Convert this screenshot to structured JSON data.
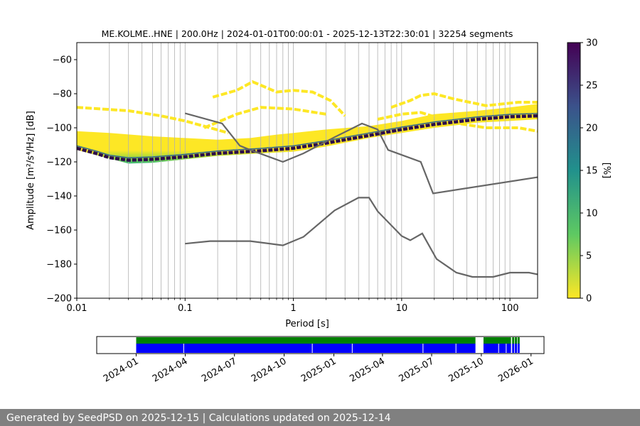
{
  "footer": {
    "text": "Generated by SeedPSD on 2025-12-15 | Calculations updated on 2025-12-14"
  },
  "chart_data": [
    {
      "type": "heatmap",
      "title": "ME.KOLME..HNE | 200.0Hz | 2024-01-01T00:00:01 - 2025-12-13T22:30:01 | 32254 segments",
      "xlabel": "Period [s]",
      "ylabel": "Amplitude [m²/s⁴/Hz] [dB]",
      "xscale": "log",
      "xlim": [
        0.01,
        180
      ],
      "ylim": [
        -200,
        -50
      ],
      "x_ticks": [
        0.01,
        0.1,
        1,
        10,
        100
      ],
      "x_tick_labels": [
        "0.01",
        "0.1",
        "1",
        "10",
        "100"
      ],
      "y_ticks": [
        -200,
        -180,
        -160,
        -140,
        -120,
        -100,
        -80,
        -60
      ],
      "y_tick_labels": [
        "−200",
        "−180",
        "−160",
        "−140",
        "−120",
        "−100",
        "−80",
        "−60"
      ],
      "grid": "x-axis (major and minor)",
      "colorbar": {
        "label": "[%]",
        "range": [
          0,
          30
        ],
        "ticks": [
          0,
          5,
          10,
          15,
          20,
          25,
          30
        ],
        "colormap": "viridis_r",
        "colors": [
          "#fde725",
          "#5ec962",
          "#21918c",
          "#3b528b",
          "#440154"
        ]
      },
      "mode_curve": [
        [
          0.01,
          -112
        ],
        [
          0.015,
          -115
        ],
        [
          0.02,
          -117.5
        ],
        [
          0.03,
          -119
        ],
        [
          0.05,
          -118.5
        ],
        [
          0.1,
          -117
        ],
        [
          0.2,
          -115
        ],
        [
          0.5,
          -113.5
        ],
        [
          1,
          -112
        ],
        [
          2,
          -109
        ],
        [
          3,
          -107
        ],
        [
          5,
          -104.5
        ],
        [
          10,
          -101
        ],
        [
          20,
          -98
        ],
        [
          50,
          -95
        ],
        [
          100,
          -93.5
        ],
        [
          180,
          -93
        ]
      ],
      "band_upper": [
        [
          0.01,
          -102
        ],
        [
          0.02,
          -103
        ],
        [
          0.05,
          -105
        ],
        [
          0.1,
          -106
        ],
        [
          0.2,
          -107
        ],
        [
          0.4,
          -106
        ],
        [
          0.7,
          -104
        ],
        [
          1,
          -103
        ],
        [
          2,
          -101
        ],
        [
          5,
          -99
        ],
        [
          10,
          -96
        ],
        [
          20,
          -92
        ],
        [
          50,
          -90
        ],
        [
          100,
          -88
        ],
        [
          180,
          -86
        ]
      ],
      "band_lower": [
        [
          0.01,
          -113
        ],
        [
          0.02,
          -118
        ],
        [
          0.03,
          -121
        ],
        [
          0.05,
          -120.5
        ],
        [
          0.1,
          -118.5
        ],
        [
          0.2,
          -116.5
        ],
        [
          0.5,
          -115
        ],
        [
          1,
          -114
        ],
        [
          2,
          -111
        ],
        [
          5,
          -106
        ],
        [
          10,
          -103
        ],
        [
          20,
          -100
        ],
        [
          50,
          -97
        ],
        [
          100,
          -96
        ],
        [
          180,
          -95
        ]
      ],
      "sparse_upper_tracks": [
        [
          [
            0.01,
            -88
          ],
          [
            0.03,
            -90
          ],
          [
            0.06,
            -93
          ],
          [
            0.1,
            -96
          ],
          [
            0.17,
            -100
          ],
          [
            0.25,
            -103
          ]
        ],
        [
          [
            0.18,
            -82
          ],
          [
            0.3,
            -78
          ],
          [
            0.42,
            -73
          ],
          [
            0.5,
            -75
          ],
          [
            0.7,
            -79
          ],
          [
            1,
            -78
          ],
          [
            1.5,
            -79
          ],
          [
            2.2,
            -84
          ],
          [
            3,
            -93
          ]
        ],
        [
          [
            0.15,
            -100
          ],
          [
            0.3,
            -92
          ],
          [
            0.5,
            -88
          ],
          [
            1,
            -89
          ],
          [
            2,
            -92
          ]
        ],
        [
          [
            8,
            -88
          ],
          [
            12,
            -84
          ],
          [
            15,
            -81
          ],
          [
            20,
            -80
          ],
          [
            30,
            -83
          ],
          [
            60,
            -87
          ],
          [
            120,
            -85
          ],
          [
            180,
            -85
          ]
        ],
        [
          [
            6,
            -95
          ],
          [
            10,
            -92
          ],
          [
            15,
            -91
          ],
          [
            30,
            -97
          ],
          [
            60,
            -100
          ],
          [
            120,
            -100
          ],
          [
            180,
            -102
          ]
        ]
      ],
      "noise_model_upper": [
        [
          0.1,
          -91.5
        ],
        [
          0.22,
          -97.5
        ],
        [
          0.32,
          -110.5
        ],
        [
          0.4,
          -113
        ],
        [
          0.8,
          -120
        ],
        [
          1.24,
          -115
        ],
        [
          2.4,
          -105.5
        ],
        [
          4.3,
          -97.5
        ],
        [
          6,
          -101
        ],
        [
          7.5,
          -113
        ],
        [
          15,
          -120
        ],
        [
          19.5,
          -138.5
        ],
        [
          180,
          -129
        ]
      ],
      "noise_model_lower": [
        [
          0.1,
          -168
        ],
        [
          0.17,
          -166.5
        ],
        [
          0.4,
          -166.5
        ],
        [
          0.8,
          -169
        ],
        [
          1.24,
          -164
        ],
        [
          2.4,
          -148.5
        ],
        [
          4,
          -141
        ],
        [
          5,
          -141
        ],
        [
          6,
          -149
        ],
        [
          10,
          -163.5
        ],
        [
          12,
          -166
        ],
        [
          15.5,
          -162
        ],
        [
          21,
          -177
        ],
        [
          32,
          -185
        ],
        [
          45,
          -187.5
        ],
        [
          70,
          -187.5
        ],
        [
          100,
          -185
        ],
        [
          150,
          -185
        ],
        [
          180,
          -186
        ]
      ]
    },
    {
      "type": "timeline",
      "x_ticks": [
        "2024-01",
        "2024-04",
        "2024-07",
        "2024-10",
        "2025-01",
        "2025-04",
        "2025-07",
        "2025-10",
        "2026-01"
      ],
      "xlim": [
        "2023-10-20",
        "2026-01-25"
      ],
      "series": [
        {
          "name": "",
          "color": "#008000",
          "spans": [
            [
              "2024-01-01",
              "2025-09-20"
            ],
            [
              "2025-10-05",
              "2025-11-25"
            ],
            [
              "2025-11-27",
              "2025-12-01"
            ],
            [
              "2025-12-02",
              "2025-12-06"
            ],
            [
              "2025-12-07",
              "2025-12-11"
            ]
          ]
        },
        {
          "name": "",
          "color": "#0000ff",
          "spans": [
            [
              "2024-01-01",
              "2025-09-20"
            ],
            [
              "2025-10-05",
              "2025-11-25"
            ],
            [
              "2025-11-27",
              "2025-12-01"
            ],
            [
              "2025-12-02",
              "2025-12-06"
            ],
            [
              "2025-12-07",
              "2025-12-11"
            ]
          ]
        }
      ],
      "gaps_in_blue": [
        "2024-03-29",
        "2024-11-22",
        "2025-02-04",
        "2025-06-15",
        "2025-08-15",
        "2025-11-02",
        "2025-11-16"
      ]
    }
  ]
}
